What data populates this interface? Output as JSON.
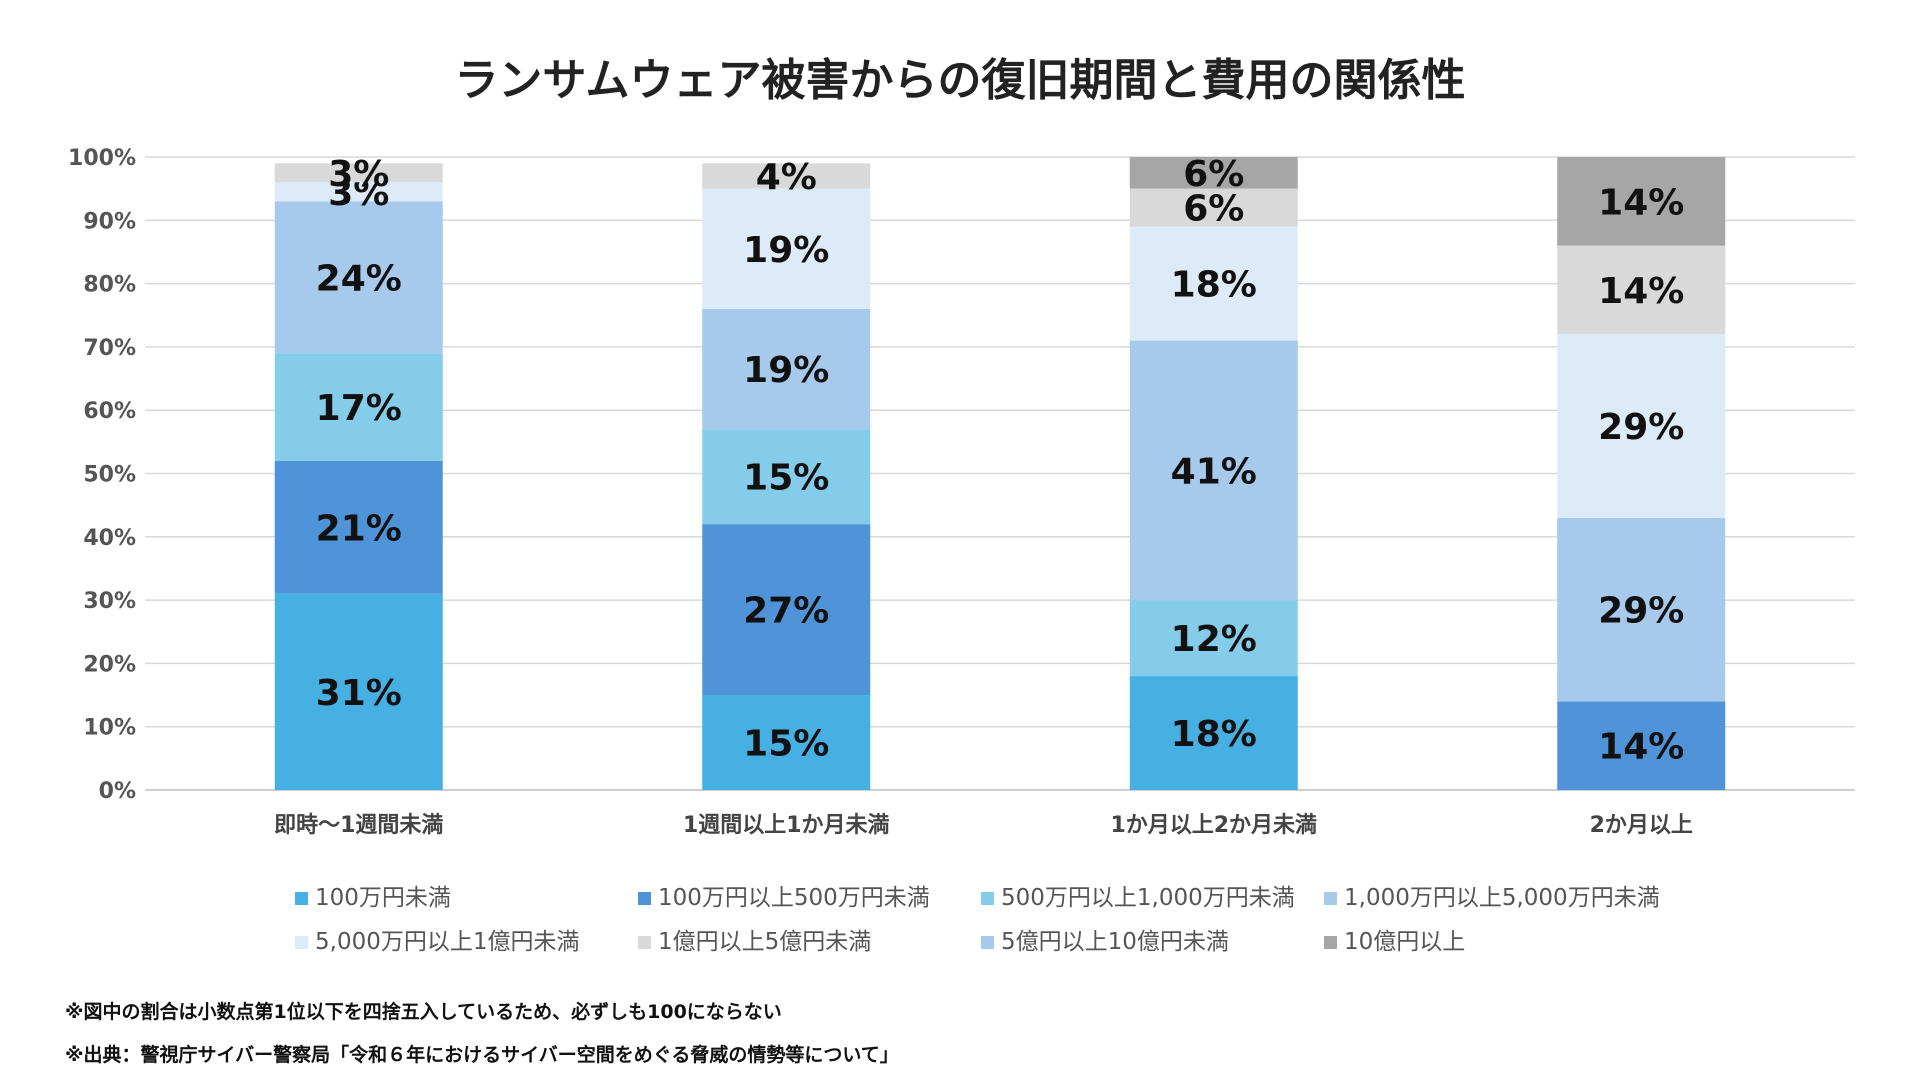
{
  "chart_data": {
    "type": "bar",
    "stacked": true,
    "title": "ランサムウェア被害からの復旧期間と費用の関係性",
    "categories": [
      "即時～1週間未満",
      "1週間以上1か月未満",
      "1か月以上2か月未満",
      "2か月以上"
    ],
    "ylim": [
      0,
      100
    ],
    "y_ticks": [
      "0%",
      "10%",
      "20%",
      "30%",
      "40%",
      "50%",
      "60%",
      "70%",
      "80%",
      "90%",
      "100%"
    ],
    "grid": true,
    "legend_position": "bottom",
    "series": [
      {
        "name": "100万円未満",
        "color": "#45B0E1",
        "values": [
          31,
          15,
          18,
          0
        ],
        "labels": [
          "31%",
          "15%",
          "18%",
          ""
        ]
      },
      {
        "name": "100万円以上500万円未満",
        "color": "#4F94D8",
        "values": [
          21,
          27,
          0,
          14
        ],
        "labels": [
          "21%",
          "27%",
          "",
          "14%"
        ]
      },
      {
        "name": "500万円以上1,000万円未満",
        "color": "#84CCEA",
        "values": [
          17,
          15,
          12,
          0
        ],
        "labels": [
          "17%",
          "15%",
          "12%",
          ""
        ]
      },
      {
        "name": "1,000万円以上5,000万円未満",
        "color": "#A6C9EC",
        "values": [
          24,
          19,
          41,
          29
        ],
        "labels": [
          "24%",
          "19%",
          "41%",
          "29%"
        ]
      },
      {
        "name": "5,000万円以上1億円未満",
        "color": "#DDEBF8",
        "values": [
          3,
          19,
          18,
          29
        ],
        "labels": [
          "3%",
          "19%",
          "18%",
          "29%"
        ]
      },
      {
        "name": "1億円以上5億円未満",
        "color": "#D9D9D9",
        "values": [
          3,
          4,
          6,
          14
        ],
        "labels": [
          "3%",
          "4%",
          "6%",
          "14%"
        ]
      },
      {
        "name": "5億円以上10億円未満",
        "color": "#A6C9EC",
        "values": [
          0,
          0,
          0,
          0
        ],
        "labels": [
          "",
          "",
          "",
          ""
        ]
      },
      {
        "name": "10億円以上",
        "color": "#A6A6A6",
        "values": [
          0,
          0,
          6,
          14
        ],
        "labels": [
          "",
          "",
          "6%",
          "14%"
        ]
      }
    ]
  },
  "notes": [
    "※図中の割合は小数点第1位以下を四捨五入しているため、必ずしも100にならない",
    "※出典：警視庁サイバー警察局「令和６年におけるサイバー空間をめぐる脅威の情勢等について」"
  ],
  "colors": {
    "gridline": "#D9D9D9",
    "axis": "#BFBFBF"
  }
}
